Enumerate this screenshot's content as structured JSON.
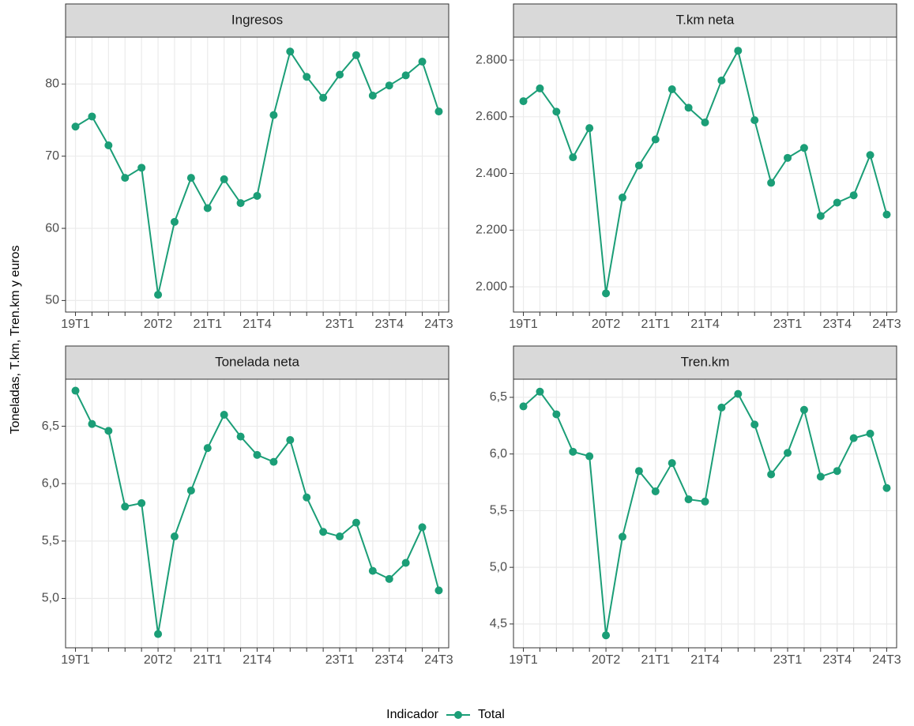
{
  "y_label": "Toneladas, T.km, Tren.km y euros",
  "legend_title": "Indicador",
  "chart_data": [
    {
      "type": "line",
      "title": "Ingresos",
      "categories": [
        "19T1",
        null,
        null,
        null,
        null,
        "20T2",
        null,
        null,
        "21T1",
        null,
        null,
        "21T4",
        null,
        null,
        null,
        null,
        "23T1",
        null,
        null,
        "23T4",
        null,
        null,
        "24T3"
      ],
      "series": [
        {
          "name": "Total",
          "color": "#1b9e77",
          "values": [
            74.1,
            75.5,
            71.5,
            67.0,
            68.4,
            50.8,
            60.9,
            67.0,
            62.8,
            66.8,
            63.5,
            64.5,
            75.7,
            84.5,
            81.0,
            78.1,
            81.3,
            84.0,
            78.4,
            79.8,
            81.2,
            83.1,
            76.2
          ]
        }
      ],
      "ylim": [
        48.4,
        86.5
      ],
      "yticks": [
        50,
        60,
        70,
        80
      ],
      "grid": true
    },
    {
      "type": "line",
      "title": "T.km neta",
      "categories": [
        "19T1",
        null,
        null,
        null,
        null,
        "20T2",
        null,
        null,
        "21T1",
        null,
        null,
        "21T4",
        null,
        null,
        null,
        null,
        "23T1",
        null,
        null,
        "23T4",
        null,
        null,
        "24T3"
      ],
      "series": [
        {
          "name": "Total",
          "color": "#1b9e77",
          "values": [
            2655,
            2700,
            2618,
            2457,
            2560,
            1977,
            2315,
            2428,
            2520,
            2697,
            2632,
            2580,
            2728,
            2833,
            2588,
            2367,
            2455,
            2490,
            2250,
            2297,
            2323,
            2465,
            2255
          ]
        }
      ],
      "ylim": [
        1911,
        2881
      ],
      "yticks": [
        {
          "value": 2000,
          "label": "2.000"
        },
        {
          "value": 2200,
          "label": "2.200"
        },
        {
          "value": 2400,
          "label": "2.400"
        },
        {
          "value": 2600,
          "label": "2.600"
        },
        {
          "value": 2800,
          "label": "2.800"
        }
      ],
      "grid": true
    },
    {
      "type": "line",
      "title": "Tonelada neta",
      "categories": [
        "19T1",
        null,
        null,
        null,
        null,
        "20T2",
        null,
        null,
        "21T1",
        null,
        null,
        "21T4",
        null,
        null,
        null,
        null,
        "23T1",
        null,
        null,
        "23T4",
        null,
        null,
        "24T3"
      ],
      "series": [
        {
          "name": "Total",
          "color": "#1b9e77",
          "values": [
            6.81,
            6.52,
            6.46,
            5.8,
            5.83,
            4.69,
            5.54,
            5.94,
            6.31,
            6.6,
            6.41,
            6.25,
            6.19,
            6.38,
            5.88,
            5.58,
            5.54,
            5.66,
            5.24,
            5.17,
            5.31,
            5.62,
            5.07
          ]
        }
      ],
      "ylim": [
        4.57,
        6.91
      ],
      "yticks": [
        {
          "value": 5,
          "label": "5,0"
        },
        {
          "value": 5.5,
          "label": "5,5"
        },
        {
          "value": 6,
          "label": "6,0"
        },
        {
          "value": 6.5,
          "label": "6,5"
        }
      ],
      "grid": true
    },
    {
      "type": "line",
      "title": "Tren.km",
      "categories": [
        "19T1",
        null,
        null,
        null,
        null,
        "20T2",
        null,
        null,
        "21T1",
        null,
        null,
        "21T4",
        null,
        null,
        null,
        null,
        "23T1",
        null,
        null,
        "23T4",
        null,
        null,
        "24T3"
      ],
      "series": [
        {
          "name": "Total",
          "color": "#1b9e77",
          "values": [
            6.42,
            6.55,
            6.35,
            6.02,
            5.98,
            4.4,
            5.27,
            5.85,
            5.67,
            5.92,
            5.6,
            5.58,
            6.41,
            6.53,
            6.26,
            5.82,
            6.01,
            6.39,
            5.8,
            5.85,
            6.14,
            6.18,
            5.7
          ]
        }
      ],
      "ylim": [
        4.29,
        6.66
      ],
      "yticks": [
        {
          "value": 4.5,
          "label": "4,5"
        },
        {
          "value": 5,
          "label": "5,0"
        },
        {
          "value": 5.5,
          "label": "5,5"
        },
        {
          "value": 6,
          "label": "6,0"
        },
        {
          "value": 6.5,
          "label": "6,5"
        }
      ],
      "grid": true
    }
  ]
}
